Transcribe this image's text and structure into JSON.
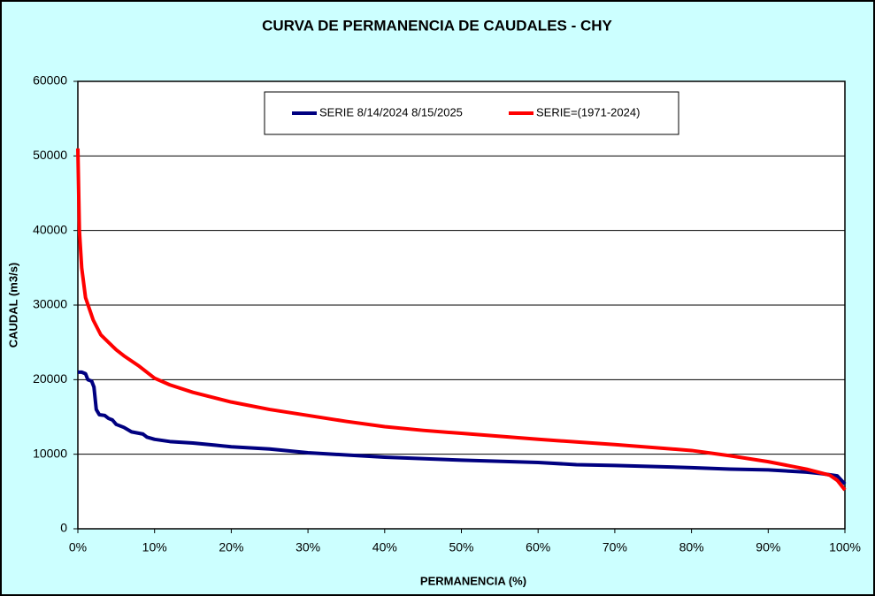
{
  "chart_data": {
    "type": "line",
    "title": "CURVA DE PERMANENCIA DE CAUDALES - CHY",
    "x_label": "PERMANENCIA (%)",
    "y_label": "CAUDAL (m3/s)",
    "xlim": [
      0,
      100
    ],
    "xticks": [
      {
        "value": 0,
        "label": "0%"
      },
      {
        "value": 10,
        "label": "10%"
      },
      {
        "value": 20,
        "label": "20%"
      },
      {
        "value": 30,
        "label": "30%"
      },
      {
        "value": 40,
        "label": "40%"
      },
      {
        "value": 50,
        "label": "50%"
      },
      {
        "value": 60,
        "label": "60%"
      },
      {
        "value": 70,
        "label": "70%"
      },
      {
        "value": 80,
        "label": "80%"
      },
      {
        "value": 90,
        "label": "90%"
      },
      {
        "value": 100,
        "label": "100%"
      }
    ],
    "ylim": [
      0,
      60000
    ],
    "yticks": [
      0,
      10000,
      20000,
      30000,
      40000,
      50000,
      60000
    ],
    "grid": true,
    "legend": "top",
    "series": [
      {
        "name": "SERIE 8/14/2024 8/15/2025",
        "color": "#000080",
        "x": [
          0,
          0.5,
          1,
          1.3,
          1.8,
          2.1,
          2.4,
          2.8,
          3.5,
          4,
          4.5,
          5,
          6,
          7,
          8.5,
          9,
          10,
          12,
          15,
          18,
          20,
          25,
          30,
          35,
          40,
          50,
          60,
          65,
          70,
          80,
          85,
          90,
          95,
          97,
          99,
          100
        ],
        "values": [
          21000,
          21000,
          20800,
          20000,
          19800,
          19000,
          16000,
          15300,
          15200,
          14800,
          14600,
          14000,
          13600,
          13000,
          12700,
          12300,
          12000,
          11700,
          11500,
          11200,
          11000,
          10700,
          10200,
          9900,
          9600,
          9200,
          8900,
          8600,
          8500,
          8200,
          8000,
          7900,
          7600,
          7400,
          7100,
          6000
        ]
      },
      {
        "name": "SERIE=(1971-2024)",
        "color": "#ff0000",
        "x": [
          0,
          0.2,
          0.5,
          1,
          2,
          3,
          4,
          5,
          6,
          8,
          10,
          12,
          15,
          20,
          25,
          30,
          35,
          40,
          45,
          50,
          60,
          70,
          80,
          85,
          90,
          95,
          98,
          99,
          100
        ],
        "values": [
          51000,
          40000,
          35000,
          31000,
          28000,
          26000,
          25000,
          24000,
          23200,
          21800,
          20200,
          19300,
          18300,
          17000,
          16000,
          15200,
          14400,
          13700,
          13200,
          12800,
          12000,
          11300,
          10500,
          9800,
          9000,
          8000,
          7200,
          6500,
          5200
        ]
      }
    ]
  }
}
